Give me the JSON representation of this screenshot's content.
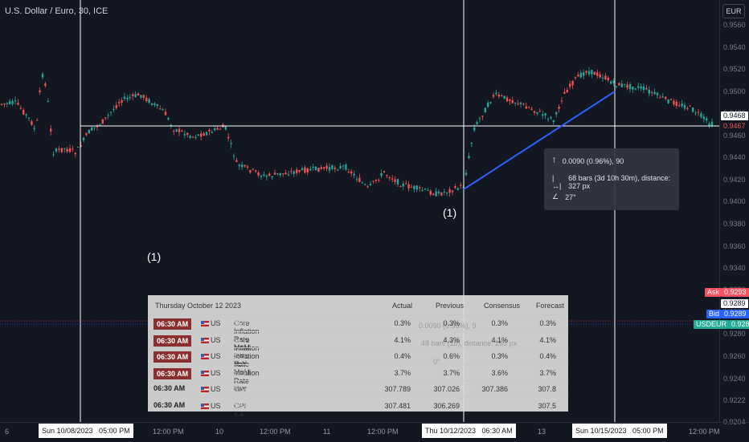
{
  "header": {
    "title": "U.S. Dollar / Euro, 30, ICE",
    "currency_button": "EUR"
  },
  "price_scale": {
    "ticks": [
      "0.9560",
      "0.9540",
      "0.9520",
      "0.9500",
      "0.9480",
      "0.9460",
      "0.9440",
      "0.9420",
      "0.9400",
      "0.9380",
      "0.9360",
      "0.9340",
      "0.9320",
      "0.9300",
      "0.9280",
      "0.9260",
      "0.9240",
      "0.9222",
      "0.9204"
    ],
    "crosshair_price": "0.9468",
    "last_price": "0.9467",
    "ask": {
      "label": "Ask",
      "value": "0.9293"
    },
    "mid": "0.9289",
    "bid": {
      "label": "Bid",
      "value": "0.9289"
    },
    "symbol": {
      "label": "USDEUR",
      "value": "0.9289"
    }
  },
  "time_scale": {
    "ticks": [
      "6",
      "12:00 PM",
      "10",
      "12:00 PM",
      "11",
      "12:00 PM",
      "13",
      "12:00 PM"
    ],
    "markers": [
      "Sun 10/08/2023   05:00 PM",
      "Thu 10/12/2023   06:30 AM",
      "Sun 10/15/2023   05:00 PM"
    ]
  },
  "annotations": [
    "(1)",
    "(1)"
  ],
  "measure": {
    "price_change": "0.0090 (0.96%), 90",
    "bars": "68 bars (3d 10h 30m), distance: 327 px",
    "angle": "27°"
  },
  "calendar": {
    "header": {
      "date": "Thursday October 12 2023",
      "actual": "Actual",
      "previous": "Previous",
      "consensus": "Consensus",
      "forecast": "Forecast"
    },
    "rows": [
      {
        "time": "06:30 AM",
        "country": "US",
        "event": "Core Inflation Rate MoM",
        "period": "SEP",
        "actual": "0.3%",
        "previous": "0.3%",
        "consensus": "0.3%",
        "forecast": "0.3%",
        "highlight": true
      },
      {
        "time": "06:30 AM",
        "country": "US",
        "event": "Core Inflation Rate YoY",
        "period": "SEP",
        "actual": "4.1%",
        "previous": "4.3%",
        "consensus": "4.1%",
        "forecast": "4.1%",
        "highlight": true
      },
      {
        "time": "06:30 AM",
        "country": "US",
        "event": "Inflation Rate MoM",
        "period": "SEP",
        "actual": "0.4%",
        "previous": "0.6%",
        "consensus": "0.3%",
        "forecast": "0.4%",
        "highlight": true
      },
      {
        "time": "06:30 AM",
        "country": "US",
        "event": "Inflation Rate YoY",
        "period": "SEP",
        "actual": "3.7%",
        "previous": "3.7%",
        "consensus": "3.6%",
        "forecast": "3.7%",
        "highlight": true
      },
      {
        "time": "06:30 AM",
        "country": "US",
        "event": "CPI",
        "period": "SEP",
        "actual": "307.789",
        "previous": "307.026",
        "consensus": "307.386",
        "forecast": "307.8",
        "highlight": false
      },
      {
        "time": "06:30 AM",
        "country": "US",
        "event": "CPI s.a",
        "period": "SEP",
        "actual": "307.481",
        "previous": "306.269",
        "consensus": "",
        "forecast": "307.5",
        "highlight": false
      }
    ],
    "ghost": {
      "line1": "0.0090 (0.96%), 9",
      "line2": "48 bars (1d), distance: 265 px",
      "line3": "0°"
    }
  },
  "colors": {
    "up": "#26a69a",
    "down": "#ef5350",
    "trend": "#2962ff",
    "ask": "#f7525f",
    "bid": "#2962ff",
    "symbol": "#22ab94"
  }
}
